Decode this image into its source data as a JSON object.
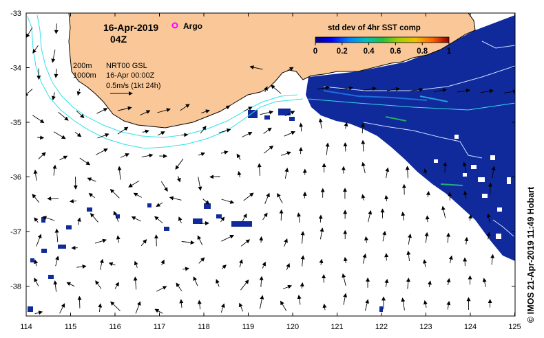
{
  "header": {
    "date": "16-Apr-2019",
    "hour": "04Z",
    "argo_label": "Argo"
  },
  "colorbar": {
    "title": "std dev of 4hr SST comp",
    "ticks": [
      "0",
      "0.2",
      "0.4",
      "0.6",
      "0.8",
      "1"
    ],
    "colors": [
      "#00008b",
      "#0000ff",
      "#0080ff",
      "#00c0c0",
      "#00c060",
      "#60c000",
      "#e0d000",
      "#ff8000",
      "#e00000",
      "#800000"
    ]
  },
  "legend": {
    "contour_200": "200m",
    "contour_1000": "1000m",
    "product": "NRT00 GSL",
    "time": "16-Apr 00:00Z",
    "scale": "0.5m/s (1kt 24h)"
  },
  "axes": {
    "x_ticks": [
      "114",
      "115",
      "116",
      "117",
      "118",
      "119",
      "120",
      "121",
      "122",
      "123",
      "124",
      "125"
    ],
    "y_ticks": [
      "-33",
      "-34",
      "-35",
      "-36",
      "-37",
      "-38"
    ]
  },
  "credit": "© IMOS 21-Apr-2019 11:49 Hobart",
  "colors": {
    "land": "#fac898",
    "sst_field": "#102a9c",
    "contour": "#2fe0e6",
    "argo": "#ff00ff"
  }
}
